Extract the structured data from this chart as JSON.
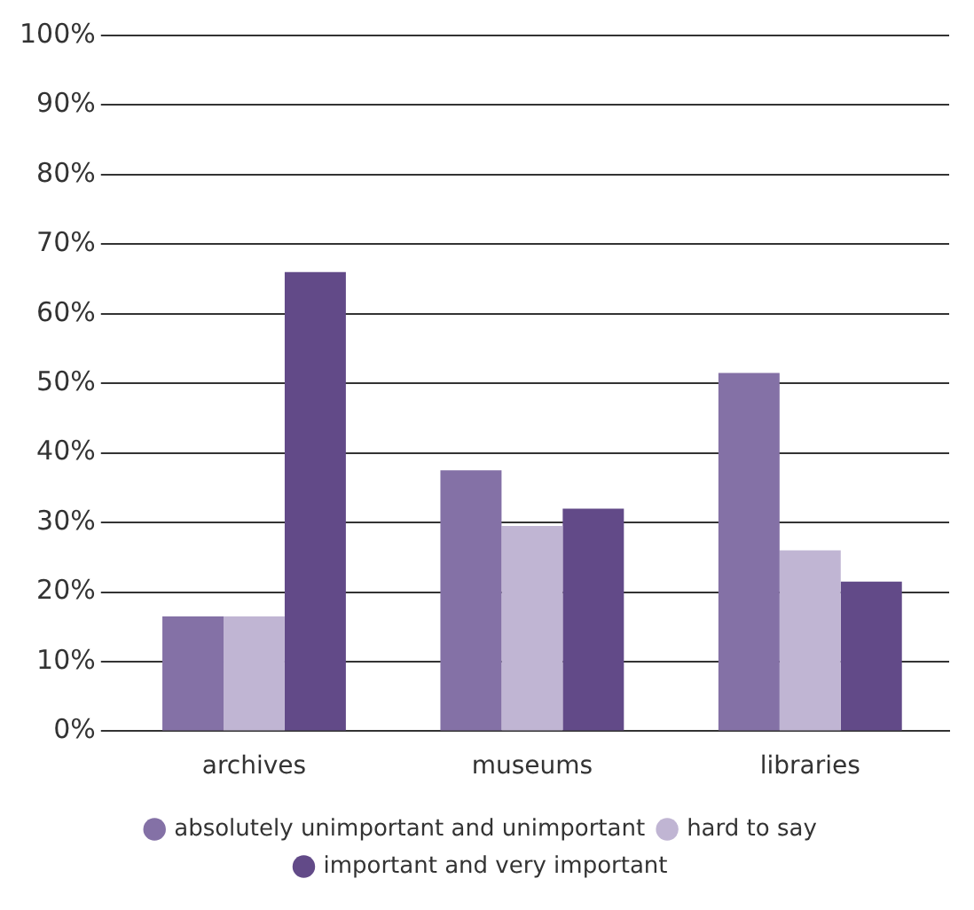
{
  "chart_data": {
    "type": "bar",
    "categories": [
      "archives",
      "museums",
      "libraries"
    ],
    "series": [
      {
        "name": "absolutely unimportant and unimportant",
        "color": "#8471a6",
        "values": [
          16.5,
          37.5,
          51.5
        ]
      },
      {
        "name": "hard to say",
        "color": "#c0b5d3",
        "values": [
          16.5,
          29.5,
          26
        ]
      },
      {
        "name": "important and very important",
        "color": "#624a88",
        "values": [
          66,
          32,
          21.5
        ]
      }
    ],
    "ylim": [
      0,
      100
    ],
    "yticks": [
      {
        "value": 0,
        "label": "0%"
      },
      {
        "value": 10,
        "label": "10%"
      },
      {
        "value": 20,
        "label": "20%"
      },
      {
        "value": 30,
        "label": "30%"
      },
      {
        "value": 40,
        "label": "40%"
      },
      {
        "value": 50,
        "label": "50%"
      },
      {
        "value": 60,
        "label": "60%"
      },
      {
        "value": 70,
        "label": "70%"
      },
      {
        "value": 80,
        "label": "80%"
      },
      {
        "value": 90,
        "label": "90%"
      },
      {
        "value": 100,
        "label": "100%"
      }
    ],
    "grid": "y",
    "legend": "bottom",
    "marker": "circle"
  }
}
